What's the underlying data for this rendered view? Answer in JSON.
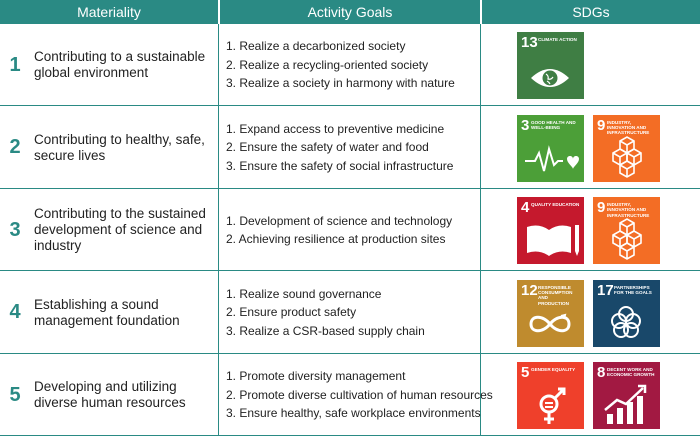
{
  "header": {
    "materiality": "Materiality",
    "activity_goals": "Activity Goals",
    "sdgs": "SDGs"
  },
  "rows": [
    {
      "num": "1",
      "materiality": "Contributing to a sustainable global environment",
      "goals": [
        "1. Realize a decarbonized society",
        "2. Realize a recycling-oriented society",
        "3. Realize a society in harmony with nature"
      ],
      "sdgs": [
        {
          "number": "13",
          "title": "CLIMATE ACTION",
          "color": "#3f7e44",
          "icon": "eye-globe-icon"
        }
      ]
    },
    {
      "num": "2",
      "materiality": "Contributing to healthy, safe, secure lives",
      "goals": [
        "1. Expand access to preventive medicine",
        "2. Ensure the safety of water and food",
        "3. Ensure the safety of social infrastructure"
      ],
      "sdgs": [
        {
          "number": "3",
          "title": "GOOD HEALTH AND WELL-BEING",
          "color": "#4c9f38",
          "icon": "heartbeat-icon"
        },
        {
          "number": "9",
          "title": "INDUSTRY, INNOVATION AND INFRASTRUCTURE",
          "color": "#f36d25",
          "icon": "cubes-icon"
        }
      ]
    },
    {
      "num": "3",
      "materiality": "Contributing to the sustained development of science and industry",
      "goals": [
        "1. Development of science and technology",
        "2. Achieving resilience at production sites"
      ],
      "sdgs": [
        {
          "number": "4",
          "title": "QUALITY EDUCATION",
          "color": "#c5192d",
          "icon": "book-pencil-icon"
        },
        {
          "number": "9",
          "title": "INDUSTRY, INNOVATION AND INFRASTRUCTURE",
          "color": "#f36d25",
          "icon": "cubes-icon"
        }
      ]
    },
    {
      "num": "4",
      "materiality": "Establishing a sound management foundation",
      "goals": [
        "1. Realize sound governance",
        "2. Ensure product safety",
        "3. Realize a CSR-based supply chain"
      ],
      "sdgs": [
        {
          "number": "12",
          "title": "RESPONSIBLE CONSUMPTION AND PRODUCTION",
          "color": "#bf8b2e",
          "icon": "infinity-icon"
        },
        {
          "number": "17",
          "title": "PARTNERSHIPS FOR THE GOALS",
          "color": "#19486a",
          "icon": "rings-icon"
        }
      ]
    },
    {
      "num": "5",
      "materiality": "Developing and utilizing diverse human resources",
      "goals": [
        "1. Promote diversity management",
        "2. Promote diverse cultivation of human resources",
        "3. Ensure healthy, safe workplace environments"
      ],
      "sdgs": [
        {
          "number": "5",
          "title": "GENDER EQUALITY",
          "color": "#ef402b",
          "icon": "gender-icon"
        },
        {
          "number": "8",
          "title": "DECENT WORK AND ECONOMIC GROWTH",
          "color": "#a21942",
          "icon": "growth-chart-icon"
        }
      ]
    }
  ]
}
